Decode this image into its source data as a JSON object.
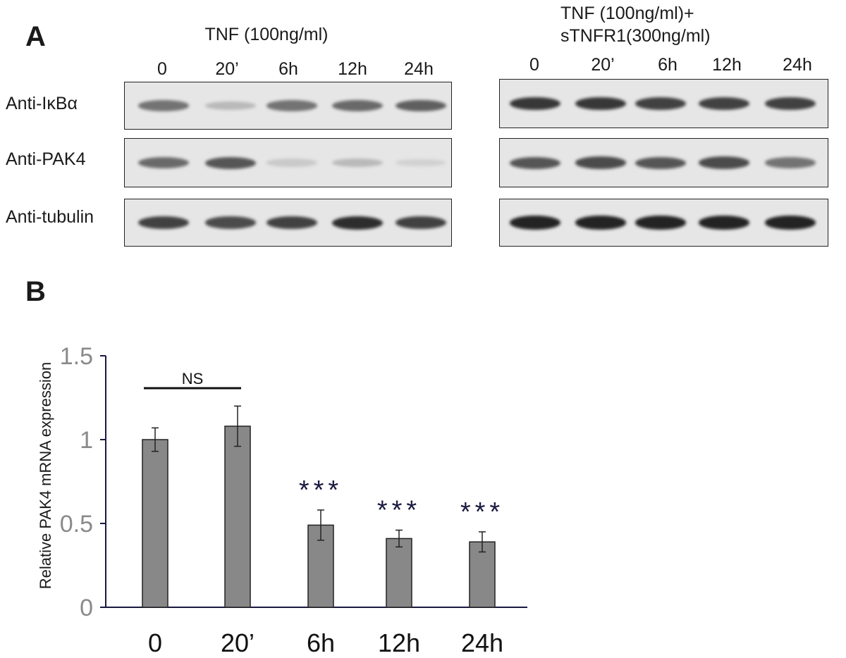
{
  "panel_a": {
    "letter": "A",
    "groups": [
      {
        "condition": "TNF (100ng/ml)",
        "lanes": [
          "0",
          "20’",
          "6h",
          "12h",
          "24h"
        ]
      },
      {
        "condition_line1": "TNF (100ng/ml)+",
        "condition_line2": "sTNFR1(300ng/ml)",
        "lanes": [
          "0",
          "20’",
          "6h",
          "12h",
          "24h"
        ]
      }
    ],
    "blots": [
      {
        "label": "Anti-IκBα",
        "intensity_left": [
          0.55,
          0.2,
          0.55,
          0.6,
          0.65
        ],
        "intensity_right": [
          0.85,
          0.85,
          0.8,
          0.8,
          0.8
        ]
      },
      {
        "label": "Anti-PAK4",
        "intensity_left": [
          0.6,
          0.7,
          0.12,
          0.2,
          0.08
        ],
        "intensity_right": [
          0.7,
          0.75,
          0.7,
          0.75,
          0.55
        ]
      },
      {
        "label": "Anti-tubulin",
        "intensity_left": [
          0.8,
          0.75,
          0.8,
          0.9,
          0.8
        ],
        "intensity_right": [
          0.95,
          0.95,
          0.95,
          0.95,
          0.95
        ]
      }
    ]
  },
  "panel_b": {
    "letter": "B"
  },
  "chart_data": {
    "type": "bar",
    "ylabel": "Relative PAK4 mRNA expression",
    "categories": [
      "0",
      "20’",
      "6h",
      "12h",
      "24h"
    ],
    "values": [
      1.0,
      1.08,
      0.49,
      0.41,
      0.39
    ],
    "errors": [
      0.07,
      0.12,
      0.09,
      0.05,
      0.06
    ],
    "ylim": [
      0,
      1.5
    ],
    "yticks": [
      0,
      0.5,
      1,
      1.5
    ],
    "ytick_labels": [
      "0",
      "0.5",
      "1",
      "1.5"
    ],
    "significance": [
      "",
      "",
      "***",
      "***",
      "***"
    ],
    "ns_label": "NS",
    "bar_color": "#888888",
    "axis_color": "#1a1a40",
    "tick_label_color": "#8a8a8a",
    "star_color": "#1a1a40"
  }
}
